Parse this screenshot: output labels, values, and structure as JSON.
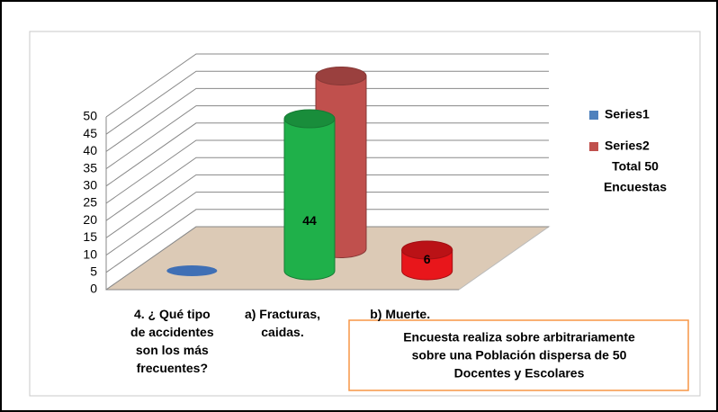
{
  "chart_data": {
    "type": "cylinder3d",
    "categories": [
      "4. ¿ Qué tipo de accidentes son los más frecuentes?",
      "a) Fracturas, caidas.",
      "b) Muerte."
    ],
    "series": [
      {
        "name": "Series1",
        "color": "#4f81bd",
        "colors": [
          "#3f6fb5",
          "#1fb04a",
          "#e8161b"
        ],
        "values": [
          0,
          44,
          6
        ],
        "data_labels": [
          false,
          true,
          true
        ]
      },
      {
        "name": "Series2",
        "color": "#c0504d",
        "values": [
          null,
          50,
          null
        ]
      }
    ],
    "ylim": [
      0,
      50
    ],
    "yticks": [
      0,
      5,
      10,
      15,
      20,
      25,
      30,
      35,
      40,
      45,
      50
    ],
    "grid": true,
    "legend": "right",
    "legend_note": [
      "Total 50",
      "Encuestas"
    ],
    "note": [
      "Encuesta realiza sobre arbitrariamente",
      "sobre una Población dispersa de 50",
      "Docentes y Escolares"
    ]
  }
}
